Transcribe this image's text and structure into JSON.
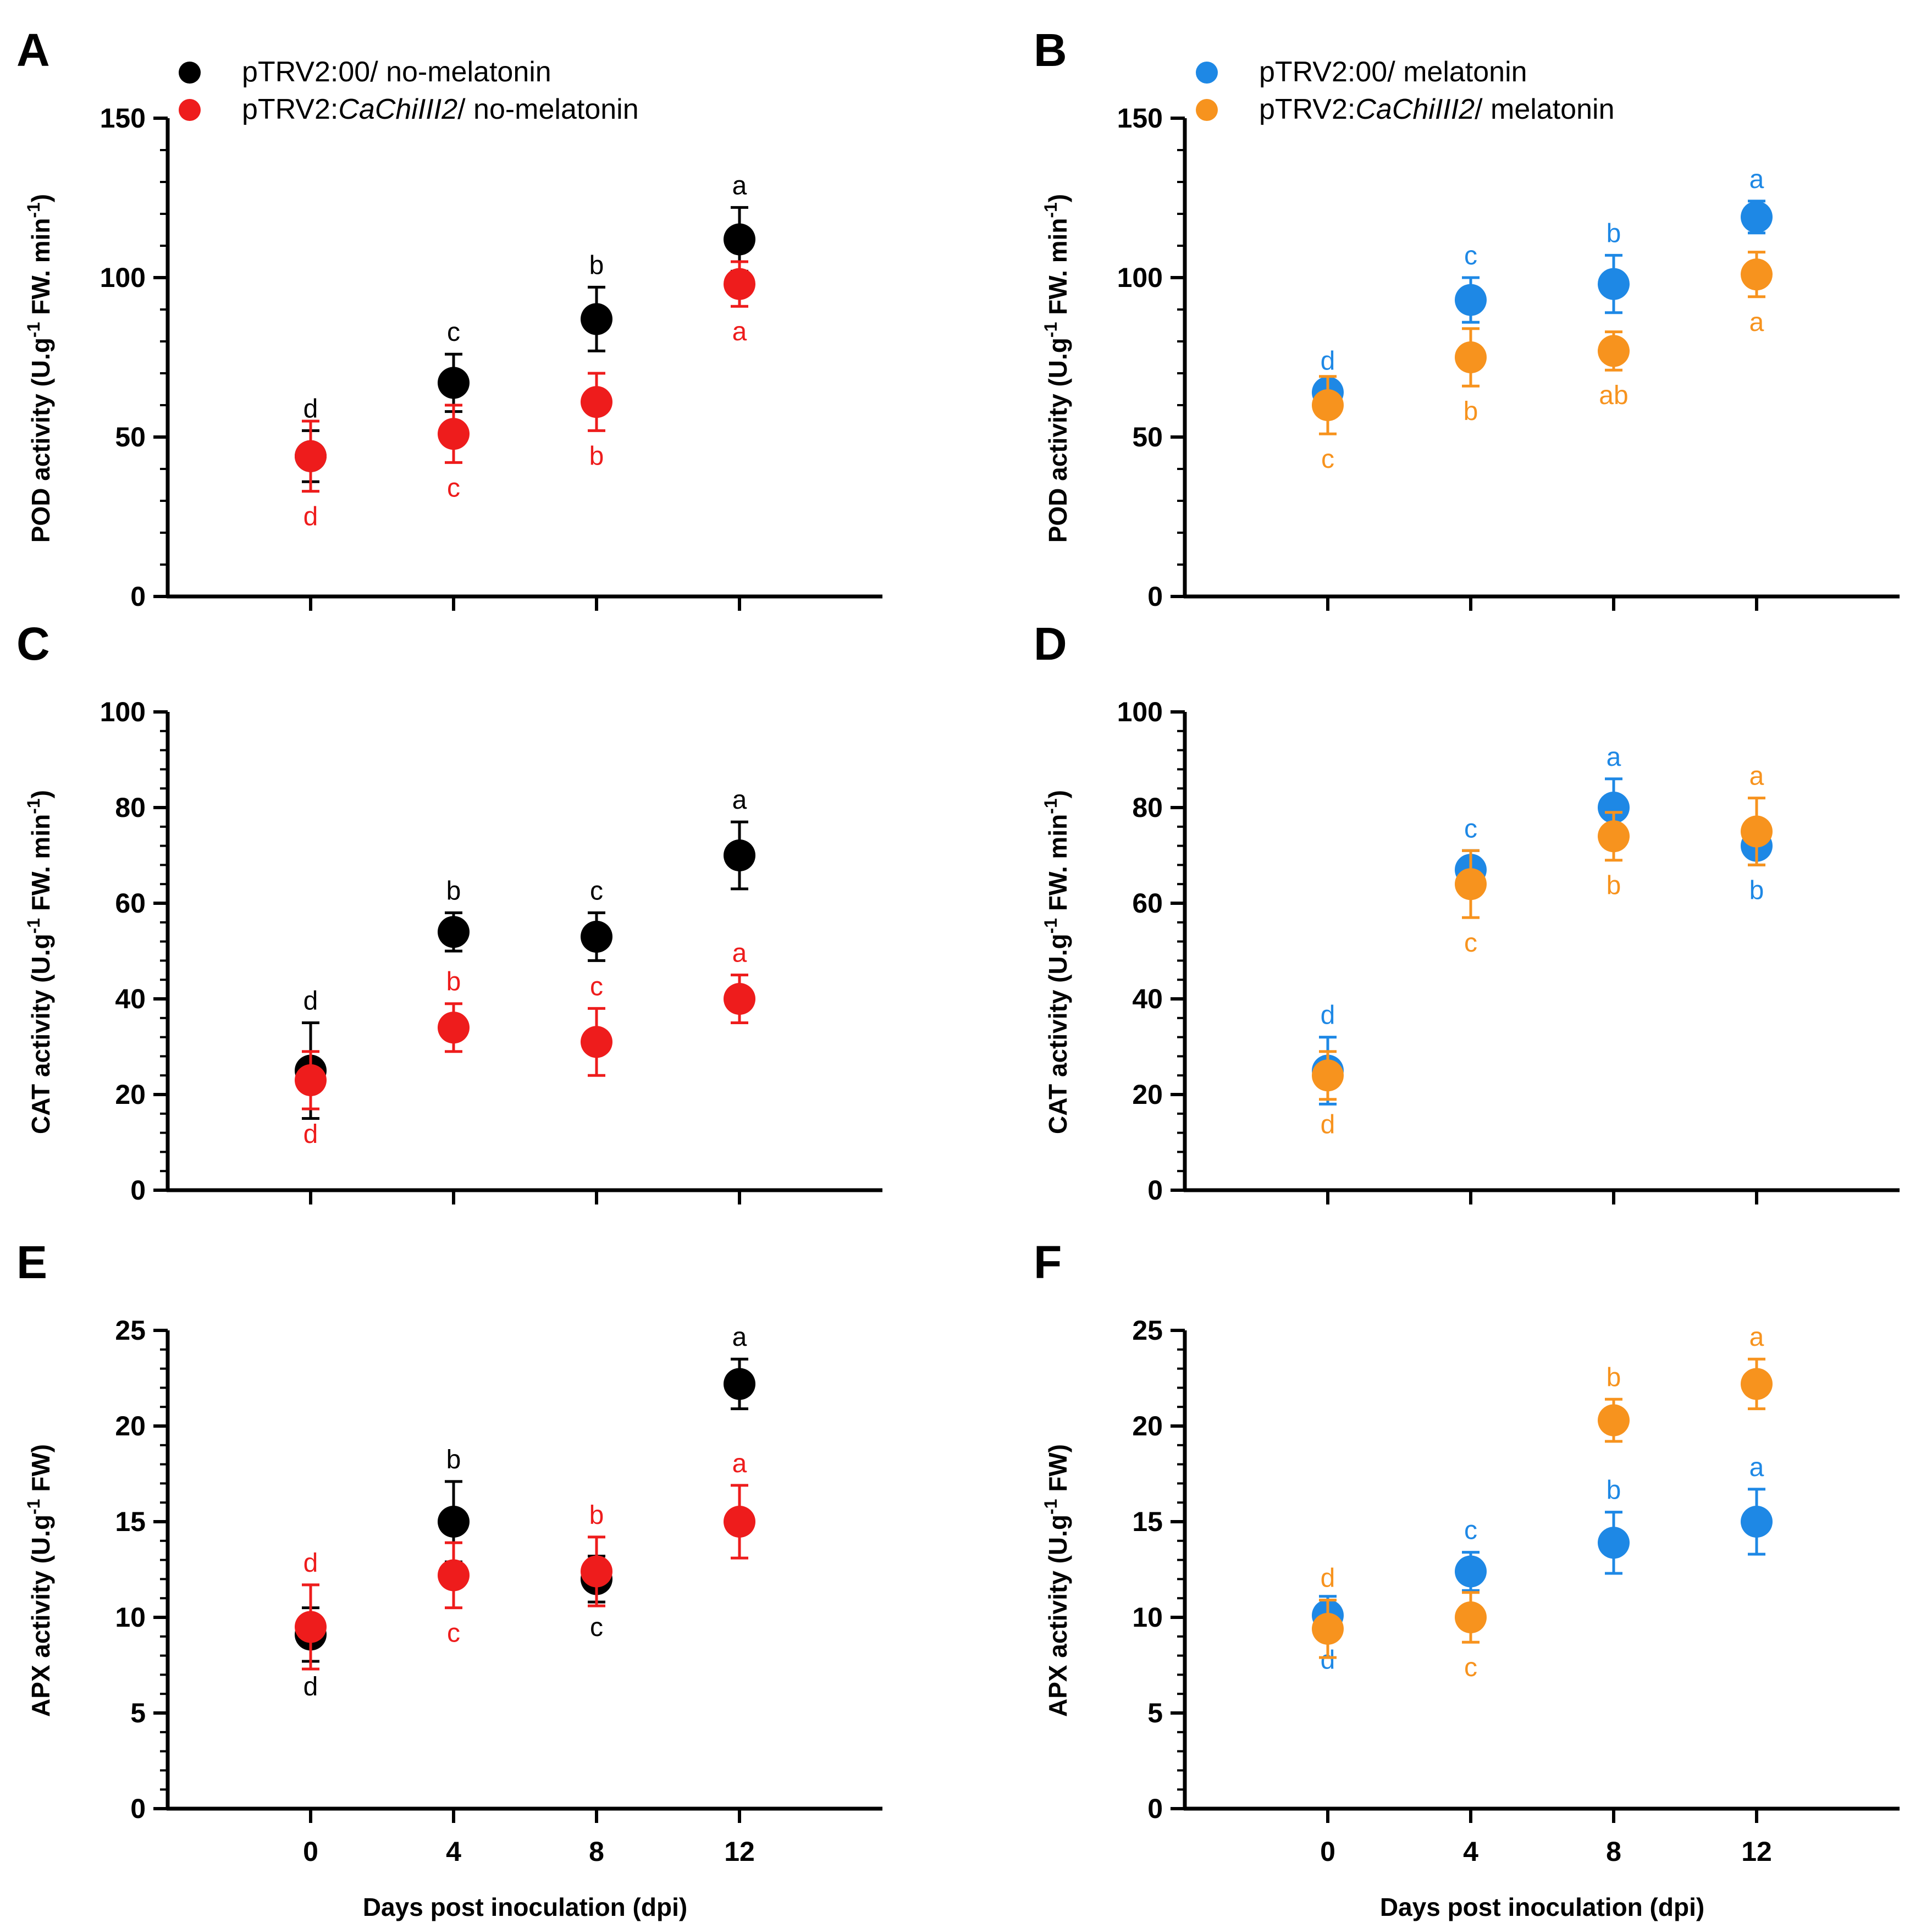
{
  "figure": {
    "xlabel": "Days post inoculation (dpi)",
    "x_ticks": [
      0,
      4,
      8,
      12
    ],
    "legends": {
      "left": [
        {
          "marker": "black",
          "parts": [
            {
              "t": "pTRV2:00/ no-melatonin",
              "i": false
            }
          ]
        },
        {
          "marker": "red",
          "parts": [
            {
              "t": "pTRV2:",
              "i": false
            },
            {
              "t": "CaChiIII2",
              "i": true
            },
            {
              "t": "/ no-melatonin",
              "i": false
            }
          ]
        }
      ],
      "right": [
        {
          "marker": "blue",
          "parts": [
            {
              "t": "pTRV2:00/ melatonin",
              "i": false
            }
          ]
        },
        {
          "marker": "orange",
          "parts": [
            {
              "t": "pTRV2:",
              "i": false
            },
            {
              "t": "CaChiIII2",
              "i": true
            },
            {
              "t": "/ melatonin",
              "i": false
            }
          ]
        }
      ]
    }
  },
  "colors": {
    "black": "#000000",
    "red": "#ee1c1c",
    "blue": "#1e88e5",
    "orange": "#f7931e"
  },
  "chart_data": [
    {
      "type": "scatter",
      "panel": "A",
      "ylabel_main": "POD activity (U.g",
      "ylabel_sup1": "-1",
      "ylabel_mid": " FW. min",
      "ylabel_sup2": "-1",
      "ylabel_end": ")",
      "ylim": [
        0,
        150
      ],
      "y_ticks": [
        0,
        50,
        100,
        150
      ],
      "x": [
        0,
        4,
        8,
        12
      ],
      "series": [
        {
          "name": "pTRV2:00/ no-melatonin",
          "color": "black",
          "values": [
            44,
            67,
            87,
            112
          ],
          "errors": [
            8,
            9,
            10,
            10
          ],
          "letters": [
            "d",
            "c",
            "b",
            "a"
          ],
          "letter_pos": [
            "above",
            "above",
            "above",
            "above"
          ]
        },
        {
          "name": "pTRV2:CaChiIII2/ no-melatonin",
          "color": "red",
          "values": [
            44,
            51,
            61,
            98
          ],
          "errors": [
            11,
            9,
            9,
            7
          ],
          "letters": [
            "d",
            "c",
            "b",
            "a"
          ],
          "letter_pos": [
            "below",
            "below",
            "below",
            "below"
          ]
        }
      ]
    },
    {
      "type": "scatter",
      "panel": "B",
      "ylabel_main": "POD activity (U.g",
      "ylabel_sup1": "-1",
      "ylabel_mid": " FW. min",
      "ylabel_sup2": "-1",
      "ylabel_end": ")",
      "ylim": [
        0,
        150
      ],
      "y_ticks": [
        0,
        50,
        100,
        150
      ],
      "x": [
        0,
        4,
        8,
        12
      ],
      "series": [
        {
          "name": "pTRV2:00/ melatonin",
          "color": "blue",
          "values": [
            64,
            93,
            98,
            119
          ],
          "errors": [
            3,
            7,
            9,
            5
          ],
          "letters": [
            "d",
            "c",
            "b",
            "a"
          ],
          "letter_pos": [
            "above",
            "above",
            "above",
            "above"
          ]
        },
        {
          "name": "pTRV2:CaChiIII2/ melatonin",
          "color": "orange",
          "values": [
            60,
            75,
            77,
            101
          ],
          "errors": [
            9,
            9,
            6,
            7
          ],
          "letters": [
            "c",
            "b",
            "ab",
            "a"
          ],
          "letter_pos": [
            "below",
            "below",
            "below",
            "below"
          ]
        }
      ]
    },
    {
      "type": "scatter",
      "panel": "C",
      "ylabel_main": "CAT activity (U.g",
      "ylabel_sup1": "-1",
      "ylabel_mid": " FW. min",
      "ylabel_sup2": "-1",
      "ylabel_end": ")",
      "ylim": [
        0,
        100
      ],
      "y_ticks": [
        0,
        20,
        40,
        60,
        80,
        100
      ],
      "x": [
        0,
        4,
        8,
        12
      ],
      "series": [
        {
          "name": "pTRV2:00/ no-melatonin",
          "color": "black",
          "values": [
            25,
            54,
            53,
            70
          ],
          "errors": [
            10,
            4,
            5,
            7
          ],
          "letters": [
            "d",
            "b",
            "c",
            "a"
          ],
          "letter_pos": [
            "above",
            "above",
            "above",
            "above"
          ]
        },
        {
          "name": "pTRV2:CaChiIII2/ no-melatonin",
          "color": "red",
          "values": [
            23,
            34,
            31,
            40
          ],
          "errors": [
            6,
            5,
            7,
            5
          ],
          "letters": [
            "d",
            "b",
            "c",
            "a"
          ],
          "letter_pos": [
            "below",
            "above",
            "above",
            "above"
          ]
        }
      ]
    },
    {
      "type": "scatter",
      "panel": "D",
      "ylabel_main": "CAT activity (U.g",
      "ylabel_sup1": "-1",
      "ylabel_mid": " FW. min",
      "ylabel_sup2": "-1",
      "ylabel_end": ")",
      "ylim": [
        0,
        100
      ],
      "y_ticks": [
        0,
        20,
        40,
        60,
        80,
        100
      ],
      "x": [
        0,
        4,
        8,
        12
      ],
      "series": [
        {
          "name": "pTRV2:00/ melatonin",
          "color": "blue",
          "values": [
            25,
            67,
            80,
            72
          ],
          "errors": [
            7,
            4,
            6,
            4
          ],
          "letters": [
            "d",
            "c",
            "a",
            "b"
          ],
          "letter_pos": [
            "above",
            "above",
            "above",
            "below"
          ]
        },
        {
          "name": "pTRV2:CaChiIII2/ melatonin",
          "color": "orange",
          "values": [
            24,
            64,
            74,
            75
          ],
          "errors": [
            5,
            7,
            5,
            7
          ],
          "letters": [
            "d",
            "c",
            "b",
            "a"
          ],
          "letter_pos": [
            "below",
            "below",
            "below",
            "above"
          ]
        }
      ]
    },
    {
      "type": "scatter",
      "panel": "E",
      "ylabel_main": "APX activity (U.g",
      "ylabel_sup1": "-1",
      "ylabel_mid": " FW)",
      "ylabel_sup2": "",
      "ylabel_end": "",
      "ylim": [
        0,
        25
      ],
      "y_ticks": [
        0,
        5,
        10,
        15,
        20,
        25
      ],
      "x": [
        0,
        4,
        8,
        12
      ],
      "series": [
        {
          "name": "pTRV2:00/ no-melatonin",
          "color": "black",
          "values": [
            9.1,
            15.0,
            12.0,
            22.2
          ],
          "errors": [
            1.4,
            2.1,
            1.2,
            1.3
          ],
          "letters": [
            "d",
            "b",
            "c",
            "a"
          ],
          "letter_pos": [
            "below",
            "above",
            "below",
            "above"
          ]
        },
        {
          "name": "pTRV2:CaChiIII2/ no-melatonin",
          "color": "red",
          "values": [
            9.5,
            12.2,
            12.4,
            15.0
          ],
          "errors": [
            2.2,
            1.7,
            1.8,
            1.9
          ],
          "letters": [
            "d",
            "c",
            "b",
            "a"
          ],
          "letter_pos": [
            "above",
            "below",
            "above",
            "above"
          ]
        }
      ]
    },
    {
      "type": "scatter",
      "panel": "F",
      "ylabel_main": "APX activity (U.g",
      "ylabel_sup1": "-1",
      "ylabel_mid": " FW)",
      "ylabel_sup2": "",
      "ylabel_end": "",
      "ylim": [
        0,
        25
      ],
      "y_ticks": [
        0,
        5,
        10,
        15,
        20,
        25
      ],
      "x": [
        0,
        4,
        8,
        12
      ],
      "series": [
        {
          "name": "pTRV2:00/ melatonin",
          "color": "blue",
          "values": [
            10.1,
            12.4,
            13.9,
            15.0
          ],
          "errors": [
            1.0,
            1.0,
            1.6,
            1.7
          ],
          "letters": [
            "d",
            "c",
            "b",
            "a"
          ],
          "letter_pos": [
            "below",
            "above",
            "above",
            "above"
          ]
        },
        {
          "name": "pTRV2:CaChiIII2/ melatonin",
          "color": "orange",
          "values": [
            9.4,
            10.0,
            20.3,
            22.2
          ],
          "errors": [
            1.5,
            1.3,
            1.1,
            1.3
          ],
          "letters": [
            "d",
            "c",
            "b",
            "a"
          ],
          "letter_pos": [
            "above",
            "below",
            "above",
            "above"
          ]
        }
      ]
    }
  ]
}
